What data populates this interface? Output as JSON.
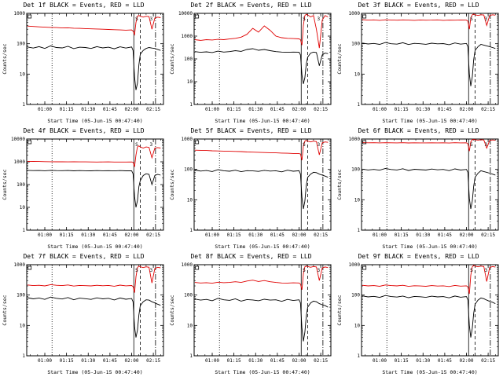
{
  "chart_data": {
    "type": "line",
    "title_pattern": "Det Nf BLACK = Events, RED = LLD",
    "xlabel": "Start Time (05-Jun-15 00:47:40)",
    "ylabel": "Counts/sec",
    "x_unit": "minutes since 00:00 on 05-Jun-15",
    "xlim": [
      47.5,
      142
    ],
    "grid": false,
    "yscale": "log",
    "colors": {
      "events": "#000000",
      "lld": "#e00000"
    },
    "xticks": [
      {
        "x": 60,
        "label": "01:00"
      },
      {
        "x": 75,
        "label": "01:15"
      },
      {
        "x": 90,
        "label": "01:30"
      },
      {
        "x": 105,
        "label": "01:45"
      },
      {
        "x": 120,
        "label": "02:00"
      },
      {
        "x": 135,
        "label": "02:15"
      }
    ],
    "reference_lines": [
      {
        "x": 65,
        "style": "dotted"
      },
      {
        "x": 121.5,
        "style": "solid"
      },
      {
        "x": 126,
        "style": "dashed"
      },
      {
        "x": 136.5,
        "style": "dashdot"
      }
    ],
    "annotations": [
      {
        "x": 49.5,
        "type": "square"
      },
      {
        "x": 123.5,
        "text": "S"
      },
      {
        "x": 133.5,
        "text": "3"
      }
    ],
    "x": [
      48,
      52,
      56,
      60,
      64,
      68,
      72,
      76,
      80,
      84,
      88,
      92,
      96,
      100,
      104,
      108,
      112,
      116,
      120,
      121,
      122,
      123,
      124,
      125,
      126,
      128,
      130,
      132,
      134,
      136,
      138,
      140
    ],
    "panels": [
      {
        "title": "Det 1f BLACK = Events, RED = LLD",
        "ymax": 1000,
        "yticks": [
          1,
          10,
          100,
          1000
        ],
        "series": {
          "events": [
            78,
            72,
            80,
            70,
            85,
            75,
            73,
            82,
            69,
            77,
            75,
            70,
            80,
            73,
            77,
            68,
            79,
            72,
            78,
            60,
            8,
            3,
            5,
            20,
            45,
            60,
            70,
            75,
            72,
            70,
            65,
            60
          ],
          "lld": [
            380,
            370,
            360,
            350,
            345,
            340,
            330,
            335,
            325,
            320,
            315,
            310,
            305,
            300,
            295,
            290,
            285,
            280,
            285,
            260,
            200,
            500,
            800,
            850,
            800,
            750,
            800,
            780,
            300,
            700,
            750,
            720
          ]
        }
      },
      {
        "title": "Det 2f BLACK = Events, RED = LLD",
        "ymax": 10000,
        "yticks": [
          1,
          10,
          100,
          1000,
          10000
        ],
        "series": {
          "events": [
            210,
            195,
            205,
            190,
            220,
            200,
            210,
            230,
            215,
            260,
            280,
            240,
            260,
            230,
            210,
            200,
            195,
            200,
            198,
            150,
            20,
            8,
            15,
            60,
            120,
            180,
            200,
            190,
            50,
            150,
            180,
            170
          ],
          "lld": [
            700,
            650,
            700,
            680,
            720,
            700,
            750,
            800,
            900,
            1200,
            2200,
            1500,
            2800,
            1800,
            1000,
            850,
            800,
            780,
            760,
            700,
            400,
            3000,
            8000,
            9000,
            8500,
            7000,
            8000,
            2000,
            300,
            5000,
            8000,
            7000
          ]
        }
      },
      {
        "title": "Det 3f BLACK = Events, RED = LLD",
        "ymax": 1000,
        "yticks": [
          1,
          10,
          100,
          1000
        ],
        "series": {
          "events": [
            105,
            98,
            102,
            95,
            110,
            100,
            97,
            108,
            94,
            103,
            100,
            96,
            104,
            99,
            101,
            93,
            106,
            97,
            102,
            80,
            10,
            4,
            8,
            30,
            60,
            80,
            95,
            90,
            85,
            80,
            75,
            70
          ],
          "lld": [
            620,
            600,
            610,
            590,
            615,
            605,
            595,
            610,
            600,
            590,
            605,
            595,
            600,
            610,
            590,
            600,
            595,
            605,
            600,
            550,
            300,
            700,
            900,
            950,
            900,
            850,
            900,
            880,
            400,
            850,
            900,
            870
          ]
        }
      },
      {
        "title": "Det 4f BLACK = Events, RED = LLD",
        "ymax": 10000,
        "yticks": [
          1,
          10,
          100,
          1000,
          10000
        ],
        "series": {
          "events": [
            420,
            410,
            415,
            405,
            420,
            410,
            408,
            415,
            400,
            410,
            405,
            400,
            410,
            405,
            408,
            398,
            412,
            402,
            406,
            300,
            30,
            10,
            20,
            80,
            150,
            250,
            300,
            280,
            100,
            250,
            280,
            260
          ],
          "lld": [
            1050,
            1040,
            1030,
            1020,
            1010,
            1000,
            1000,
            990,
            1000,
            995,
            990,
            985,
            980,
            985,
            990,
            980,
            975,
            980,
            985,
            950,
            600,
            2000,
            4500,
            5000,
            4500,
            4000,
            4500,
            4300,
            1500,
            4000,
            4200,
            4000
          ]
        }
      },
      {
        "title": "Det 5f BLACK = Events, RED = LLD",
        "ymax": 1000,
        "yticks": [
          1,
          10,
          100,
          1000
        ],
        "series": {
          "events": [
            95,
            88,
            92,
            85,
            98,
            90,
            87,
            94,
            84,
            91,
            89,
            86,
            93,
            88,
            90,
            83,
            94,
            87,
            90,
            70,
            12,
            5,
            9,
            30,
            55,
            70,
            80,
            78,
            70,
            65,
            60,
            55
          ],
          "lld": [
            430,
            425,
            420,
            410,
            405,
            400,
            395,
            390,
            385,
            375,
            370,
            365,
            360,
            355,
            350,
            345,
            340,
            335,
            330,
            320,
            200,
            600,
            850,
            900,
            850,
            800,
            850,
            820,
            300,
            750,
            800,
            780
          ]
        }
      },
      {
        "title": "Det 6f BLACK = Events, RED = LLD",
        "ymax": 1000,
        "yticks": [
          1,
          10,
          100,
          1000
        ],
        "series": {
          "events": [
            102,
            96,
            100,
            94,
            107,
            99,
            96,
            105,
            92,
            101,
            98,
            95,
            103,
            97,
            100,
            91,
            104,
            95,
            100,
            80,
            11,
            5,
            9,
            28,
            55,
            75,
            90,
            85,
            80,
            75,
            70,
            65
          ],
          "lld": [
            760,
            750,
            755,
            745,
            758,
            750,
            748,
            755,
            742,
            752,
            748,
            745,
            753,
            749,
            751,
            740,
            754,
            746,
            750,
            700,
            400,
            800,
            950,
            970,
            950,
            920,
            950,
            930,
            500,
            900,
            930,
            910
          ]
        }
      },
      {
        "title": "Det 7f BLACK = Events, RED = LLD",
        "ymax": 1000,
        "yticks": [
          1,
          10,
          100,
          1000
        ],
        "series": {
          "events": [
            82,
            75,
            80,
            72,
            86,
            78,
            74,
            83,
            70,
            79,
            76,
            72,
            81,
            75,
            78,
            69,
            80,
            73,
            77,
            60,
            9,
            4,
            7,
            22,
            45,
            60,
            70,
            68,
            60,
            55,
            50,
            46
          ],
          "lld": [
            215,
            205,
            210,
            200,
            220,
            210,
            205,
            215,
            198,
            208,
            204,
            200,
            210,
            203,
            207,
            196,
            212,
            202,
            206,
            190,
            120,
            400,
            800,
            900,
            850,
            800,
            850,
            820,
            250,
            750,
            820,
            790
          ]
        }
      },
      {
        "title": "Det 8f BLACK = Events, RED = LLD",
        "ymax": 1000,
        "yticks": [
          1,
          10,
          100,
          1000
        ],
        "series": {
          "events": [
            74,
            68,
            72,
            65,
            78,
            70,
            67,
            75,
            63,
            71,
            69,
            65,
            73,
            68,
            70,
            62,
            72,
            66,
            70,
            55,
            8,
            3,
            6,
            20,
            40,
            55,
            63,
            60,
            52,
            48,
            45,
            40
          ],
          "lld": [
            260,
            250,
            255,
            245,
            265,
            255,
            260,
            275,
            260,
            290,
            310,
            280,
            300,
            275,
            260,
            250,
            248,
            252,
            250,
            230,
            150,
            500,
            850,
            900,
            870,
            820,
            870,
            840,
            300,
            780,
            840,
            800
          ]
        }
      },
      {
        "title": "Det 9f BLACK = Events, RED = LLD",
        "ymax": 1000,
        "yticks": [
          1,
          10,
          100,
          1000
        ],
        "series": {
          "events": [
            94,
            87,
            91,
            84,
            97,
            89,
            86,
            93,
            82,
            90,
            88,
            84,
            92,
            87,
            89,
            81,
            93,
            85,
            89,
            70,
            10,
            4,
            8,
            25,
            50,
            68,
            80,
            76,
            68,
            62,
            58,
            52
          ],
          "lld": [
            210,
            200,
            205,
            195,
            215,
            205,
            200,
            210,
            193,
            203,
            199,
            195,
            205,
            198,
            202,
            191,
            207,
            197,
            201,
            185,
            110,
            450,
            850,
            950,
            900,
            850,
            900,
            870,
            280,
            800,
            870,
            830
          ]
        }
      }
    ]
  }
}
